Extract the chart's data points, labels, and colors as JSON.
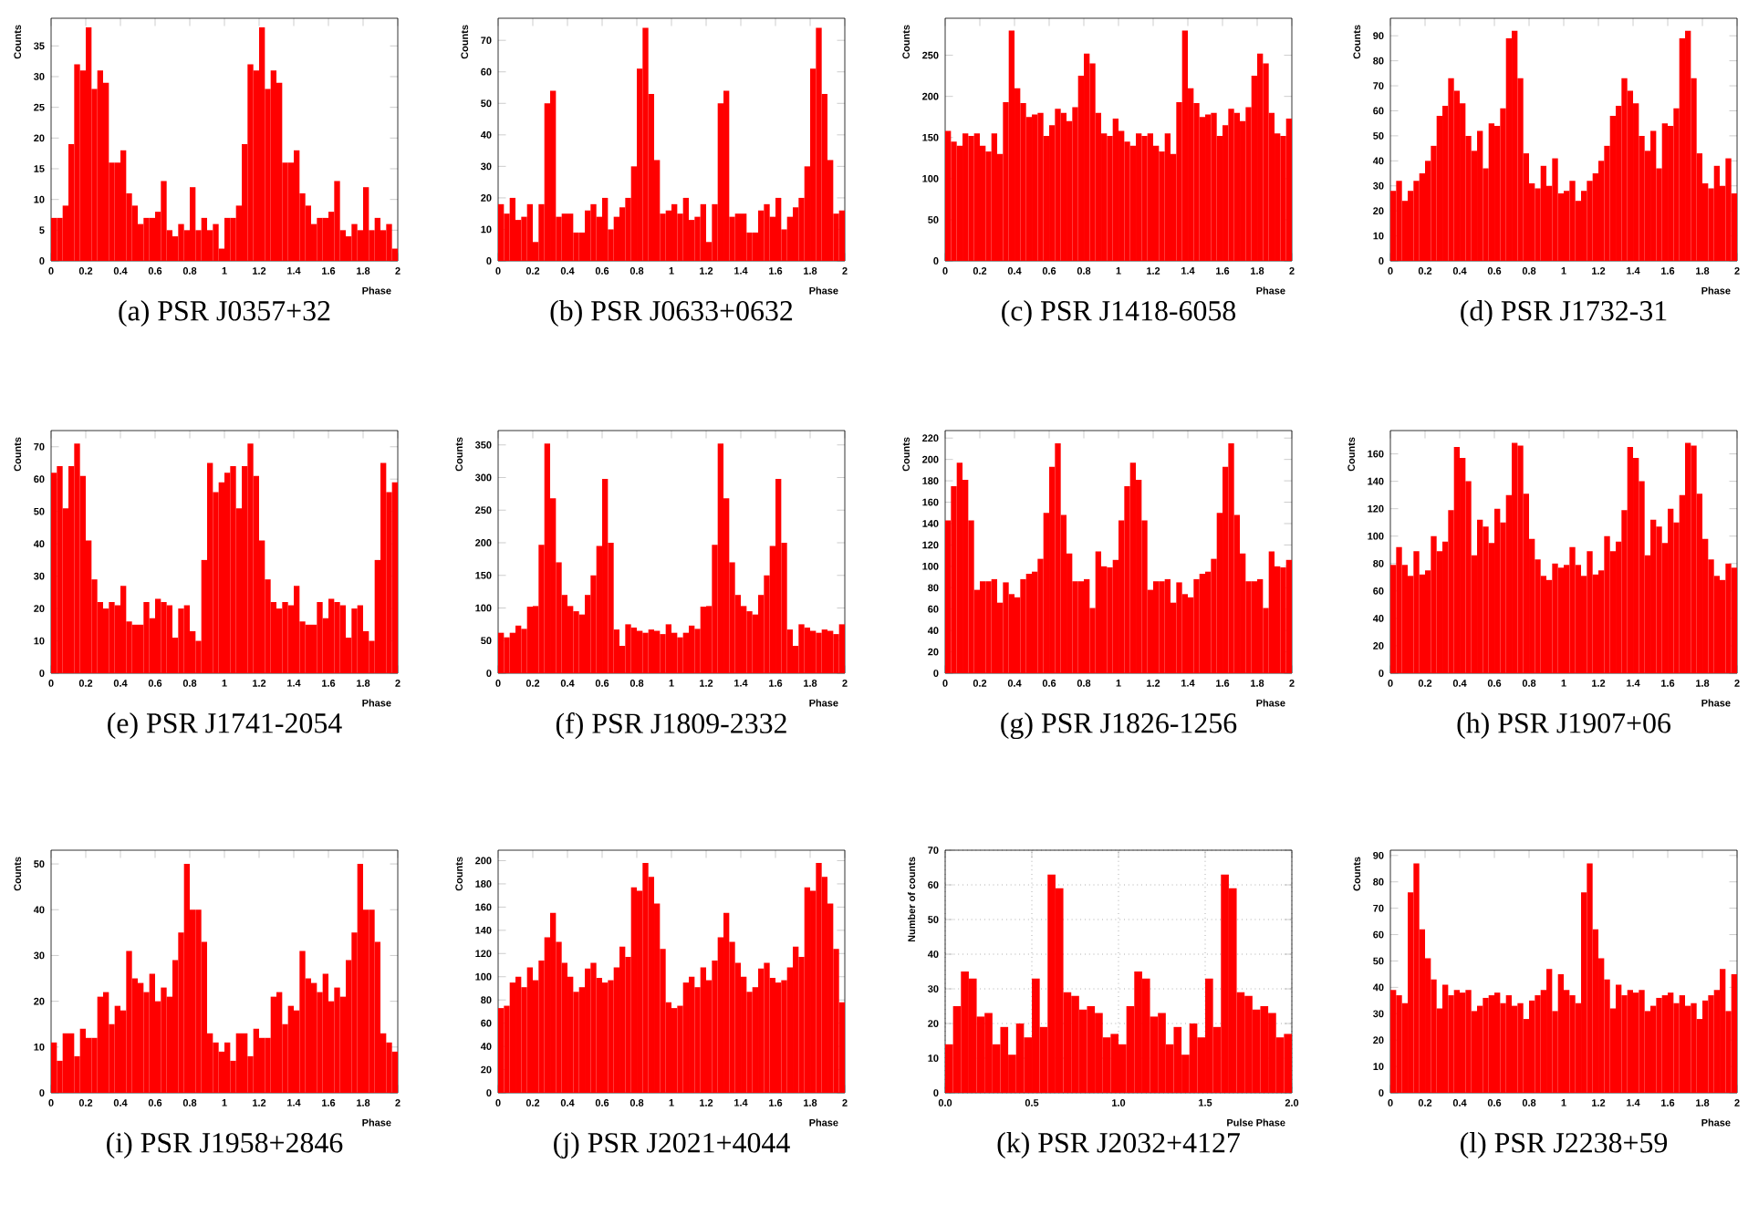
{
  "chart_data": [
    {
      "type": "histogram",
      "title": "(a) PSR J0357+32",
      "xlabel": "Phase",
      "ylabel": "Counts",
      "color": "#ff0000",
      "xlim": [
        0,
        2
      ],
      "ylim": [
        0,
        39.5
      ],
      "xticks": [
        0,
        0.2,
        0.4,
        0.6,
        0.8,
        1,
        1.2,
        1.4,
        1.6,
        1.8,
        2
      ],
      "yticks": [
        0,
        5,
        10,
        15,
        20,
        25,
        30,
        35
      ],
      "bins": [
        0,
        0.0333,
        0.0667,
        0.1,
        0.1333,
        0.1667,
        0.2,
        0.2333,
        0.2667,
        0.3,
        0.3333,
        0.3667,
        0.4,
        0.4333,
        0.4667,
        0.5,
        0.5333,
        0.5667,
        0.6,
        0.6333,
        0.6667,
        0.7,
        0.7333,
        0.7667,
        0.8,
        0.8333,
        0.8667,
        0.9,
        0.9333,
        0.9667,
        1,
        1.0333,
        1.0667,
        1.1,
        1.1333,
        1.1667,
        1.2,
        1.2333,
        1.2667,
        1.3,
        1.3333,
        1.3667,
        1.4,
        1.4333,
        1.4667,
        1.5,
        1.5333,
        1.5667,
        1.6,
        1.6333,
        1.6667,
        1.7,
        1.7333,
        1.7667,
        1.8,
        1.8333,
        1.8667,
        1.9,
        1.9333,
        1.9667,
        2
      ],
      "values": [
        7,
        7,
        9,
        19,
        32,
        31,
        38,
        28,
        31,
        29,
        16,
        16,
        18,
        11,
        9,
        6,
        7,
        7,
        8,
        13,
        5,
        4,
        6,
        5,
        12,
        5,
        7,
        5,
        6,
        2,
        7,
        7,
        9,
        19,
        32,
        31,
        38,
        28,
        31,
        29,
        16,
        16,
        18,
        11,
        9,
        6,
        7,
        7,
        8,
        13,
        5,
        4,
        6,
        5,
        12,
        5,
        7,
        5,
        6,
        2
      ]
    },
    {
      "type": "histogram",
      "title": "(b) PSR J0633+0632",
      "xlabel": "Phase",
      "ylabel": "Counts",
      "color": "#ff0000",
      "xlim": [
        0,
        2
      ],
      "ylim": [
        0,
        77
      ],
      "xticks": [
        0,
        0.2,
        0.4,
        0.6,
        0.8,
        1,
        1.2,
        1.4,
        1.6,
        1.8,
        2
      ],
      "yticks": [
        0,
        10,
        20,
        30,
        40,
        50,
        60,
        70
      ],
      "bins": [
        0,
        0.0333,
        0.0667,
        0.1,
        0.1333,
        0.1667,
        0.2,
        0.2333,
        0.2667,
        0.3,
        0.3333,
        0.3667,
        0.4,
        0.4333,
        0.4667,
        0.5,
        0.5333,
        0.5667,
        0.6,
        0.6333,
        0.6667,
        0.7,
        0.7333,
        0.7667,
        0.8,
        0.8333,
        0.8667,
        0.9,
        0.9333,
        0.9667,
        1,
        1.0333,
        1.0667,
        1.1,
        1.1333,
        1.1667,
        1.2,
        1.2333,
        1.2667,
        1.3,
        1.3333,
        1.3667,
        1.4,
        1.4333,
        1.4667,
        1.5,
        1.5333,
        1.5667,
        1.6,
        1.6333,
        1.6667,
        1.7,
        1.7333,
        1.7667,
        1.8,
        1.8333,
        1.8667,
        1.9,
        1.9333,
        1.9667,
        2
      ],
      "values": [
        18,
        15,
        20,
        13,
        14,
        18,
        6,
        18,
        50,
        54,
        14,
        15,
        15,
        9,
        9,
        16,
        18,
        14,
        20,
        10,
        14,
        17,
        20,
        30,
        61,
        74,
        53,
        32,
        15,
        16,
        18,
        15,
        20,
        13,
        14,
        18,
        6,
        18,
        50,
        54,
        14,
        15,
        15,
        9,
        9,
        16,
        18,
        14,
        20,
        10,
        14,
        17,
        20,
        30,
        61,
        74,
        53,
        32,
        15,
        16
      ]
    },
    {
      "type": "histogram",
      "title": "(c) PSR J1418-6058",
      "xlabel": "Phase",
      "ylabel": "Counts",
      "color": "#ff0000",
      "xlim": [
        0,
        2
      ],
      "ylim": [
        0,
        295
      ],
      "xticks": [
        0,
        0.2,
        0.4,
        0.6,
        0.8,
        1,
        1.2,
        1.4,
        1.6,
        1.8,
        2
      ],
      "yticks": [
        0,
        50,
        100,
        150,
        200,
        250
      ],
      "bins": [
        0,
        0.0333,
        0.0667,
        0.1,
        0.1333,
        0.1667,
        0.2,
        0.2333,
        0.2667,
        0.3,
        0.3333,
        0.3667,
        0.4,
        0.4333,
        0.4667,
        0.5,
        0.5333,
        0.5667,
        0.6,
        0.6333,
        0.6667,
        0.7,
        0.7333,
        0.7667,
        0.8,
        0.8333,
        0.8667,
        0.9,
        0.9333,
        0.9667,
        1,
        1.0333,
        1.0667,
        1.1,
        1.1333,
        1.1667,
        1.2,
        1.2333,
        1.2667,
        1.3,
        1.3333,
        1.3667,
        1.4,
        1.4333,
        1.4667,
        1.5,
        1.5333,
        1.5667,
        1.6,
        1.6333,
        1.6667,
        1.7,
        1.7333,
        1.7667,
        1.8,
        1.8333,
        1.8667,
        1.9,
        1.9333,
        1.9667,
        2
      ],
      "values": [
        158,
        145,
        140,
        155,
        152,
        155,
        140,
        133,
        155,
        130,
        193,
        280,
        210,
        192,
        175,
        178,
        180,
        152,
        165,
        185,
        180,
        170,
        187,
        225,
        252,
        240,
        180,
        155,
        152,
        173,
        158,
        145,
        140,
        155,
        152,
        155,
        140,
        133,
        155,
        130,
        193,
        280,
        210,
        192,
        175,
        178,
        180,
        152,
        165,
        185,
        180,
        170,
        187,
        225,
        252,
        240,
        180,
        155,
        152,
        173
      ]
    },
    {
      "type": "histogram",
      "title": "(d) PSR J1732-31",
      "xlabel": "Phase",
      "ylabel": "Counts",
      "color": "#ff0000",
      "xlim": [
        0,
        2
      ],
      "ylim": [
        0,
        97
      ],
      "xticks": [
        0,
        0.2,
        0.4,
        0.6,
        0.8,
        1,
        1.2,
        1.4,
        1.6,
        1.8,
        2
      ],
      "yticks": [
        0,
        10,
        20,
        30,
        40,
        50,
        60,
        70,
        80,
        90
      ],
      "bins": [
        0,
        0.0333,
        0.0667,
        0.1,
        0.1333,
        0.1667,
        0.2,
        0.2333,
        0.2667,
        0.3,
        0.3333,
        0.3667,
        0.4,
        0.4333,
        0.4667,
        0.5,
        0.5333,
        0.5667,
        0.6,
        0.6333,
        0.6667,
        0.7,
        0.7333,
        0.7667,
        0.8,
        0.8333,
        0.8667,
        0.9,
        0.9333,
        0.9667,
        1,
        1.0333,
        1.0667,
        1.1,
        1.1333,
        1.1667,
        1.2,
        1.2333,
        1.2667,
        1.3,
        1.3333,
        1.3667,
        1.4,
        1.4333,
        1.4667,
        1.5,
        1.5333,
        1.5667,
        1.6,
        1.6333,
        1.6667,
        1.7,
        1.7333,
        1.7667,
        1.8,
        1.8333,
        1.8667,
        1.9,
        1.9333,
        1.9667,
        2
      ],
      "values": [
        28,
        32,
        24,
        28,
        32,
        35,
        40,
        46,
        58,
        62,
        73,
        68,
        63,
        50,
        44,
        52,
        37,
        55,
        54,
        61,
        89,
        92,
        73,
        43,
        31,
        29,
        38,
        30,
        41,
        27,
        28,
        32,
        24,
        28,
        32,
        35,
        40,
        46,
        58,
        62,
        73,
        68,
        63,
        50,
        44,
        52,
        37,
        55,
        54,
        61,
        89,
        92,
        73,
        43,
        31,
        29,
        38,
        30,
        41,
        27
      ]
    },
    {
      "type": "histogram",
      "title": "(e) PSR J1741-2054",
      "xlabel": "Phase",
      "ylabel": "Counts",
      "color": "#ff0000",
      "xlim": [
        0,
        2
      ],
      "ylim": [
        0,
        75
      ],
      "xticks": [
        0,
        0.2,
        0.4,
        0.6,
        0.8,
        1,
        1.2,
        1.4,
        1.6,
        1.8,
        2
      ],
      "yticks": [
        0,
        10,
        20,
        30,
        40,
        50,
        60,
        70
      ],
      "bins": [
        0,
        0.0333,
        0.0667,
        0.1,
        0.1333,
        0.1667,
        0.2,
        0.2333,
        0.2667,
        0.3,
        0.3333,
        0.3667,
        0.4,
        0.4333,
        0.4667,
        0.5,
        0.5333,
        0.5667,
        0.6,
        0.6333,
        0.6667,
        0.7,
        0.7333,
        0.7667,
        0.8,
        0.8333,
        0.8667,
        0.9,
        0.9333,
        0.9667,
        1,
        1.0333,
        1.0667,
        1.1,
        1.1333,
        1.1667,
        1.2,
        1.2333,
        1.2667,
        1.3,
        1.3333,
        1.3667,
        1.4,
        1.4333,
        1.4667,
        1.5,
        1.5333,
        1.5667,
        1.6,
        1.6333,
        1.6667,
        1.7,
        1.7333,
        1.7667,
        1.8,
        1.8333,
        1.8667,
        1.9,
        1.9333,
        1.9667,
        2
      ],
      "values": [
        62,
        64,
        51,
        64,
        71,
        61,
        41,
        29,
        22,
        20,
        22,
        21,
        27,
        16,
        15,
        15,
        22,
        17,
        23,
        22,
        21,
        11,
        20,
        21,
        13,
        10,
        35,
        65,
        56,
        59,
        62,
        64,
        51,
        64,
        71,
        61,
        41,
        29,
        22,
        20,
        22,
        21,
        27,
        16,
        15,
        15,
        22,
        17,
        23,
        22,
        21,
        11,
        20,
        21,
        13,
        10,
        35,
        65,
        56,
        59
      ]
    },
    {
      "type": "histogram",
      "title": "(f) PSR J1809-2332",
      "xlabel": "Phase",
      "ylabel": "Counts",
      "color": "#ff0000",
      "xlim": [
        0,
        2
      ],
      "ylim": [
        0,
        372
      ],
      "xticks": [
        0,
        0.2,
        0.4,
        0.6,
        0.8,
        1,
        1.2,
        1.4,
        1.6,
        1.8,
        2
      ],
      "yticks": [
        0,
        50,
        100,
        150,
        200,
        250,
        300,
        350
      ],
      "bins": [
        0,
        0.0333,
        0.0667,
        0.1,
        0.1333,
        0.1667,
        0.2,
        0.2333,
        0.2667,
        0.3,
        0.3333,
        0.3667,
        0.4,
        0.4333,
        0.4667,
        0.5,
        0.5333,
        0.5667,
        0.6,
        0.6333,
        0.6667,
        0.7,
        0.7333,
        0.7667,
        0.8,
        0.8333,
        0.8667,
        0.9,
        0.9333,
        0.9667,
        1,
        1.0333,
        1.0667,
        1.1,
        1.1333,
        1.1667,
        1.2,
        1.2333,
        1.2667,
        1.3,
        1.3333,
        1.3667,
        1.4,
        1.4333,
        1.4667,
        1.5,
        1.5333,
        1.5667,
        1.6,
        1.6333,
        1.6667,
        1.7,
        1.7333,
        1.7667,
        1.8,
        1.8333,
        1.8667,
        1.9,
        1.9333,
        1.9667,
        2
      ],
      "values": [
        62,
        55,
        62,
        73,
        68,
        102,
        103,
        197,
        352,
        268,
        170,
        120,
        103,
        95,
        90,
        120,
        150,
        195,
        298,
        200,
        67,
        42,
        75,
        70,
        65,
        62,
        67,
        65,
        60,
        75,
        62,
        55,
        62,
        73,
        68,
        102,
        103,
        197,
        352,
        268,
        170,
        120,
        103,
        95,
        90,
        120,
        150,
        195,
        298,
        200,
        67,
        42,
        75,
        70,
        65,
        62,
        67,
        65,
        60,
        75
      ]
    },
    {
      "type": "histogram",
      "title": "(g) PSR J1826-1256",
      "xlabel": "Phase",
      "ylabel": "Counts",
      "color": "#ff0000",
      "xlim": [
        0,
        2
      ],
      "ylim": [
        0,
        227
      ],
      "xticks": [
        0,
        0.2,
        0.4,
        0.6,
        0.8,
        1,
        1.2,
        1.4,
        1.6,
        1.8,
        2
      ],
      "yticks": [
        0,
        20,
        40,
        60,
        80,
        100,
        120,
        140,
        160,
        180,
        200,
        220
      ],
      "bins": [
        0,
        0.0333,
        0.0667,
        0.1,
        0.1333,
        0.1667,
        0.2,
        0.2333,
        0.2667,
        0.3,
        0.3333,
        0.3667,
        0.4,
        0.4333,
        0.4667,
        0.5,
        0.5333,
        0.5667,
        0.6,
        0.6333,
        0.6667,
        0.7,
        0.7333,
        0.7667,
        0.8,
        0.8333,
        0.8667,
        0.9,
        0.9333,
        0.9667,
        1,
        1.0333,
        1.0667,
        1.1,
        1.1333,
        1.1667,
        1.2,
        1.2333,
        1.2667,
        1.3,
        1.3333,
        1.3667,
        1.4,
        1.4333,
        1.4667,
        1.5,
        1.5333,
        1.5667,
        1.6,
        1.6333,
        1.6667,
        1.7,
        1.7333,
        1.7667,
        1.8,
        1.8333,
        1.8667,
        1.9,
        1.9333,
        1.9667,
        2
      ],
      "values": [
        143,
        175,
        197,
        181,
        143,
        78,
        86,
        86,
        88,
        66,
        85,
        74,
        71,
        88,
        93,
        95,
        107,
        150,
        193,
        215,
        148,
        112,
        86,
        86,
        88,
        61,
        114,
        100,
        99,
        106,
        143,
        175,
        197,
        181,
        143,
        78,
        86,
        86,
        88,
        66,
        85,
        74,
        71,
        88,
        93,
        95,
        107,
        150,
        193,
        215,
        148,
        112,
        86,
        86,
        88,
        61,
        114,
        100,
        99,
        106
      ]
    },
    {
      "type": "histogram",
      "title": "(h) PSR J1907+06",
      "xlabel": "Phase",
      "ylabel": "Counts",
      "color": "#ff0000",
      "xlim": [
        0,
        2
      ],
      "ylim": [
        0,
        177
      ],
      "xticks": [
        0,
        0.2,
        0.4,
        0.6,
        0.8,
        1,
        1.2,
        1.4,
        1.6,
        1.8,
        2
      ],
      "yticks": [
        0,
        20,
        40,
        60,
        80,
        100,
        120,
        140,
        160
      ],
      "bins": [
        0,
        0.0333,
        0.0667,
        0.1,
        0.1333,
        0.1667,
        0.2,
        0.2333,
        0.2667,
        0.3,
        0.3333,
        0.3667,
        0.4,
        0.4333,
        0.4667,
        0.5,
        0.5333,
        0.5667,
        0.6,
        0.6333,
        0.6667,
        0.7,
        0.7333,
        0.7667,
        0.8,
        0.8333,
        0.8667,
        0.9,
        0.9333,
        0.9667,
        1,
        1.0333,
        1.0667,
        1.1,
        1.1333,
        1.1667,
        1.2,
        1.2333,
        1.2667,
        1.3,
        1.3333,
        1.3667,
        1.4,
        1.4333,
        1.4667,
        1.5,
        1.5333,
        1.5667,
        1.6,
        1.6333,
        1.6667,
        1.7,
        1.7333,
        1.7667,
        1.8,
        1.8333,
        1.8667,
        1.9,
        1.9333,
        1.9667,
        2
      ],
      "values": [
        79,
        92,
        79,
        71,
        89,
        72,
        75,
        100,
        89,
        96,
        119,
        165,
        157,
        140,
        86,
        112,
        107,
        95,
        120,
        110,
        130,
        168,
        166,
        131,
        98,
        83,
        71,
        68,
        80,
        77,
        79,
        92,
        79,
        71,
        89,
        72,
        75,
        100,
        89,
        96,
        119,
        165,
        157,
        140,
        86,
        112,
        107,
        95,
        120,
        110,
        130,
        168,
        166,
        131,
        98,
        83,
        71,
        68,
        80,
        77
      ]
    },
    {
      "type": "histogram",
      "title": "(i) PSR J1958+2846",
      "xlabel": "Phase",
      "ylabel": "Counts",
      "color": "#ff0000",
      "xlim": [
        0,
        2
      ],
      "ylim": [
        0,
        53
      ],
      "xticks": [
        0,
        0.2,
        0.4,
        0.6,
        0.8,
        1,
        1.2,
        1.4,
        1.6,
        1.8,
        2
      ],
      "yticks": [
        0,
        10,
        20,
        30,
        40,
        50
      ],
      "bins": [
        0,
        0.0333,
        0.0667,
        0.1,
        0.1333,
        0.1667,
        0.2,
        0.2333,
        0.2667,
        0.3,
        0.3333,
        0.3667,
        0.4,
        0.4333,
        0.4667,
        0.5,
        0.5333,
        0.5667,
        0.6,
        0.6333,
        0.6667,
        0.7,
        0.7333,
        0.7667,
        0.8,
        0.8333,
        0.8667,
        0.9,
        0.9333,
        0.9667,
        1,
        1.0333,
        1.0667,
        1.1,
        1.1333,
        1.1667,
        1.2,
        1.2333,
        1.2667,
        1.3,
        1.3333,
        1.3667,
        1.4,
        1.4333,
        1.4667,
        1.5,
        1.5333,
        1.5667,
        1.6,
        1.6333,
        1.6667,
        1.7,
        1.7333,
        1.7667,
        1.8,
        1.8333,
        1.8667,
        1.9,
        1.9333,
        1.9667,
        2
      ],
      "values": [
        11,
        7,
        13,
        13,
        8,
        14,
        12,
        12,
        21,
        22,
        15,
        19,
        18,
        31,
        25,
        24,
        22,
        26,
        20,
        23,
        21,
        29,
        35,
        50,
        40,
        40,
        33,
        13,
        11,
        9,
        11,
        7,
        13,
        13,
        8,
        14,
        12,
        12,
        21,
        22,
        15,
        19,
        18,
        31,
        25,
        24,
        22,
        26,
        20,
        23,
        21,
        29,
        35,
        50,
        40,
        40,
        33,
        13,
        11,
        9
      ]
    },
    {
      "type": "histogram",
      "title": "(j) PSR J2021+4044",
      "xlabel": "Phase",
      "ylabel": "Counts",
      "color": "#ff0000",
      "xlim": [
        0,
        2
      ],
      "ylim": [
        0,
        209
      ],
      "xticks": [
        0,
        0.2,
        0.4,
        0.6,
        0.8,
        1,
        1.2,
        1.4,
        1.6,
        1.8,
        2
      ],
      "yticks": [
        0,
        20,
        40,
        60,
        80,
        100,
        120,
        140,
        160,
        180,
        200
      ],
      "bins": [
        0,
        0.0333,
        0.0667,
        0.1,
        0.1333,
        0.1667,
        0.2,
        0.2333,
        0.2667,
        0.3,
        0.3333,
        0.3667,
        0.4,
        0.4333,
        0.4667,
        0.5,
        0.5333,
        0.5667,
        0.6,
        0.6333,
        0.6667,
        0.7,
        0.7333,
        0.7667,
        0.8,
        0.8333,
        0.8667,
        0.9,
        0.9333,
        0.9667,
        1,
        1.0333,
        1.0667,
        1.1,
        1.1333,
        1.1667,
        1.2,
        1.2333,
        1.2667,
        1.3,
        1.3333,
        1.3667,
        1.4,
        1.4333,
        1.4667,
        1.5,
        1.5333,
        1.5667,
        1.6,
        1.6333,
        1.6667,
        1.7,
        1.7333,
        1.7667,
        1.8,
        1.8333,
        1.8667,
        1.9,
        1.9333,
        1.9667,
        2
      ],
      "values": [
        73,
        75,
        95,
        100,
        91,
        108,
        97,
        114,
        134,
        155,
        130,
        112,
        100,
        87,
        91,
        107,
        112,
        99,
        95,
        97,
        108,
        126,
        117,
        177,
        174,
        198,
        186,
        163,
        124,
        78,
        73,
        75,
        95,
        100,
        91,
        108,
        97,
        114,
        134,
        155,
        130,
        112,
        100,
        87,
        91,
        107,
        112,
        99,
        95,
        97,
        108,
        126,
        117,
        177,
        174,
        198,
        186,
        163,
        124,
        78
      ]
    },
    {
      "type": "histogram",
      "title": "(k) PSR J2032+4127",
      "xlabel": "Pulse Phase",
      "ylabel": "Number of counts",
      "color": "#ff0000",
      "grid": true,
      "xlim": [
        0,
        2
      ],
      "ylim": [
        0,
        70
      ],
      "xticks": [
        {
          "value": 0,
          "label": "0.0"
        },
        {
          "value": 0.5,
          "label": "0.5"
        },
        {
          "value": 1,
          "label": "1.0"
        },
        {
          "value": 1.5,
          "label": "1.5"
        },
        {
          "value": 2,
          "label": "2.0"
        }
      ],
      "yticks": [
        0,
        10,
        20,
        30,
        40,
        50,
        60,
        70
      ],
      "bins": [
        0,
        0.0455,
        0.0909,
        0.1364,
        0.1818,
        0.2273,
        0.2727,
        0.3182,
        0.3636,
        0.4091,
        0.4545,
        0.5,
        0.5455,
        0.5909,
        0.6364,
        0.6818,
        0.7273,
        0.7727,
        0.8182,
        0.8636,
        0.9091,
        0.9545,
        1,
        1.0455,
        1.0909,
        1.1364,
        1.1818,
        1.2273,
        1.2727,
        1.3182,
        1.3636,
        1.4091,
        1.4545,
        1.5,
        1.5455,
        1.5909,
        1.6364,
        1.6818,
        1.7273,
        1.7727,
        1.8182,
        1.8636,
        1.9091,
        1.9545,
        2
      ],
      "values": [
        14,
        25,
        35,
        33,
        22,
        23,
        14,
        19,
        11,
        20,
        16,
        33,
        19,
        63,
        59,
        29,
        28,
        24,
        25,
        23,
        16,
        17,
        14,
        25,
        35,
        33,
        22,
        23,
        14,
        19,
        11,
        20,
        16,
        33,
        19,
        63,
        59,
        29,
        28,
        24,
        25,
        23,
        16,
        17
      ]
    },
    {
      "type": "histogram",
      "title": "(l) PSR J2238+59",
      "xlabel": "Phase",
      "ylabel": "Counts",
      "color": "#ff0000",
      "xlim": [
        0,
        2
      ],
      "ylim": [
        0,
        92
      ],
      "xticks": [
        0,
        0.2,
        0.4,
        0.6,
        0.8,
        1,
        1.2,
        1.4,
        1.6,
        1.8,
        2
      ],
      "yticks": [
        0,
        10,
        20,
        30,
        40,
        50,
        60,
        70,
        80,
        90
      ],
      "bins": [
        0,
        0.0333,
        0.0667,
        0.1,
        0.1333,
        0.1667,
        0.2,
        0.2333,
        0.2667,
        0.3,
        0.3333,
        0.3667,
        0.4,
        0.4333,
        0.4667,
        0.5,
        0.5333,
        0.5667,
        0.6,
        0.6333,
        0.6667,
        0.7,
        0.7333,
        0.7667,
        0.8,
        0.8333,
        0.8667,
        0.9,
        0.9333,
        0.9667,
        1,
        1.0333,
        1.0667,
        1.1,
        1.1333,
        1.1667,
        1.2,
        1.2333,
        1.2667,
        1.3,
        1.3333,
        1.3667,
        1.4,
        1.4333,
        1.4667,
        1.5,
        1.5333,
        1.5667,
        1.6,
        1.6333,
        1.6667,
        1.7,
        1.7333,
        1.7667,
        1.8,
        1.8333,
        1.8667,
        1.9,
        1.9333,
        1.9667,
        2
      ],
      "values": [
        39,
        37,
        34,
        76,
        87,
        62,
        51,
        43,
        32,
        41,
        37,
        39,
        38,
        39,
        31,
        33,
        36,
        37,
        38,
        34,
        37,
        33,
        34,
        28,
        35,
        37,
        39,
        47,
        31,
        45,
        39,
        37,
        34,
        76,
        87,
        62,
        51,
        43,
        32,
        41,
        37,
        39,
        38,
        39,
        31,
        33,
        36,
        37,
        38,
        34,
        37,
        33,
        34,
        28,
        35,
        37,
        39,
        47,
        31,
        45
      ]
    }
  ]
}
